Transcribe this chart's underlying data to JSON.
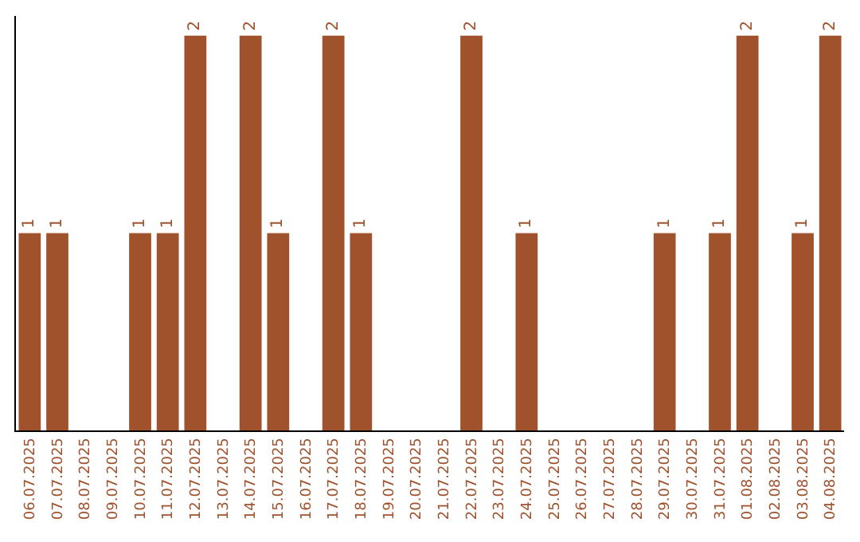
{
  "chart_data": {
    "type": "bar",
    "categories": [
      "06.07.2025",
      "07.07.2025",
      "08.07.2025",
      "09.07.2025",
      "10.07.2025",
      "11.07.2025",
      "12.07.2025",
      "13.07.2025",
      "14.07.2025",
      "15.07.2025",
      "16.07.2025",
      "17.07.2025",
      "18.07.2025",
      "19.07.2025",
      "20.07.2025",
      "21.07.2025",
      "22.07.2025",
      "23.07.2025",
      "24.07.2025",
      "25.07.2025",
      "26.07.2025",
      "27.07.2025",
      "28.07.2025",
      "29.07.2025",
      "30.07.2025",
      "31.07.2025",
      "01.08.2025",
      "02.08.2025",
      "03.08.2025",
      "04.08.2025"
    ],
    "values": [
      1,
      1,
      0,
      0,
      1,
      1,
      2,
      0,
      2,
      1,
      0,
      2,
      1,
      0,
      0,
      0,
      2,
      0,
      1,
      0,
      0,
      0,
      0,
      1,
      0,
      1,
      2,
      0,
      1,
      2
    ],
    "value_labels": [
      "1",
      "1",
      null,
      null,
      "1",
      "1",
      "2",
      null,
      "2",
      "1",
      null,
      "2",
      "1",
      null,
      null,
      null,
      "2",
      null,
      "1",
      null,
      null,
      null,
      null,
      "1",
      null,
      "1",
      "2",
      null,
      "1",
      "2"
    ],
    "color": "#a0522d",
    "tick_labels": "x",
    "legend": false
  }
}
